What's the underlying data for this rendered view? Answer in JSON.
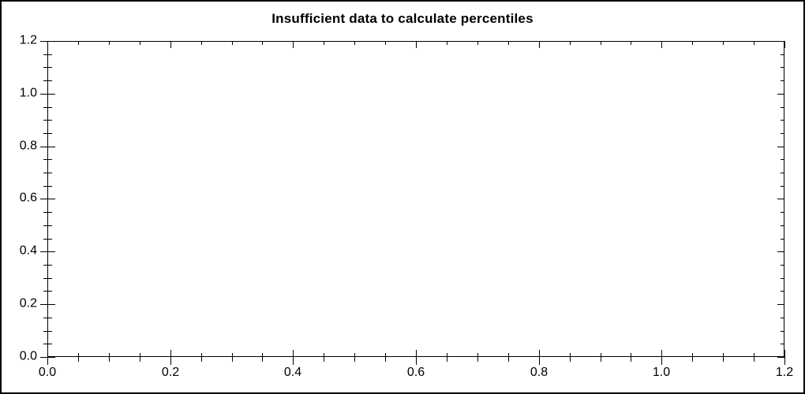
{
  "window": {
    "background_color": "#ffffff",
    "border_color": "#000000",
    "text_color": "#000000"
  },
  "chart_data": {
    "type": "line",
    "title": "Insufficient data to calculate percentiles",
    "series": [],
    "grid": false,
    "legend": false,
    "x_axis": {
      "label": "",
      "min": 0.0,
      "max": 1.2,
      "major_tick_interval": 0.2,
      "minor_tick_interval": 0.05,
      "tick_labels": [
        "0.0",
        "0.2",
        "0.4",
        "0.6",
        "0.8",
        "1.0",
        "1.2"
      ]
    },
    "y_axis": {
      "label": "",
      "min": 0.0,
      "max": 1.2,
      "major_tick_interval": 0.2,
      "minor_tick_interval": 0.05,
      "tick_labels": [
        "1.2",
        "1.0",
        "0.8",
        "0.6",
        "0.4",
        "0.2",
        "0.0"
      ]
    }
  }
}
